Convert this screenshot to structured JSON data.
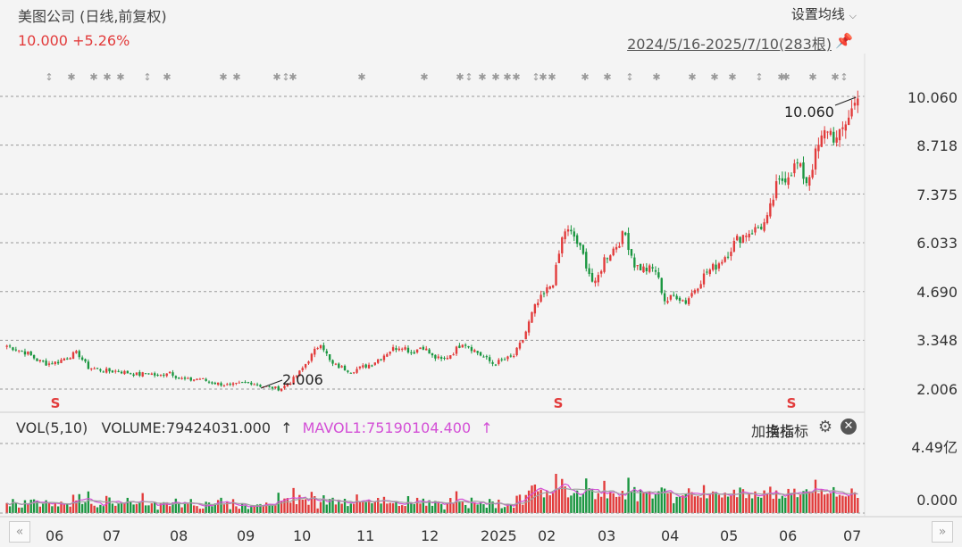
{
  "header": {
    "title": "美图公司 (日线,前复权)",
    "price_line": "10.000 +5.26%",
    "settings_label": "设置均线",
    "settings_icon": "chevron-down-icon",
    "date_range": "2024/5/16-2025/7/10(283根)",
    "pin_icon": "pin-icon"
  },
  "colors": {
    "up": "#e23b3b",
    "down": "#1a9640",
    "ma1": "#d34fd6",
    "ma2": "#a0a0a0",
    "grid": "#999999"
  },
  "chart_data": [
    {
      "type": "candlestick",
      "title": "美图公司 (日线,前复权)",
      "y_ticks": [
        "10.060",
        "8.718",
        "7.375",
        "6.033",
        "4.690",
        "3.348",
        "2.006"
      ],
      "ylim": [
        2.006,
        10.06
      ],
      "annotations": [
        {
          "label": "10.060",
          "note": "high"
        },
        {
          "label": "2.006",
          "note": "low"
        }
      ],
      "x_ticks": [
        "06",
        "07",
        "08",
        "09",
        "10",
        "11",
        "12",
        "2025",
        "02",
        "03",
        "04",
        "05",
        "06",
        "07"
      ],
      "approx_close_series": [
        3.2,
        3.1,
        3.0,
        2.8,
        2.7,
        2.75,
        2.9,
        3.0,
        2.6,
        2.55,
        2.5,
        2.5,
        2.45,
        2.4,
        2.45,
        2.35,
        2.5,
        2.3,
        2.25,
        2.3,
        2.2,
        2.15,
        2.1,
        2.15,
        2.2,
        2.1,
        2.05,
        2.01,
        2.2,
        2.5,
        2.9,
        3.3,
        2.7,
        2.6,
        2.5,
        2.6,
        2.7,
        2.9,
        3.1,
        3.2,
        3.0,
        3.2,
        2.9,
        2.8,
        3.0,
        3.3,
        3.1,
        2.9,
        2.7,
        2.8,
        2.9,
        3.4,
        4.2,
        4.6,
        5.0,
        6.4,
        6.2,
        5.6,
        4.8,
        5.6,
        5.9,
        6.3,
        5.4,
        5.3,
        5.3,
        4.4,
        4.6,
        4.4,
        4.8,
        5.2,
        5.4,
        5.7,
        6.1,
        6.3,
        6.4,
        6.6,
        7.6,
        7.9,
        8.2,
        7.7,
        8.6,
        9.2,
        8.8,
        9.5,
        10.0
      ]
    },
    {
      "type": "bar",
      "title": "VOL(5,10)",
      "y_ticks": [
        "4.49亿",
        "0.000"
      ],
      "series": [
        {
          "name": "VOLUME",
          "last": "79424031.000"
        },
        {
          "name": "MAVOL1",
          "last": "75190104.400"
        }
      ]
    }
  ],
  "volume_bar": {
    "title": "VOL(5,10)",
    "volume_text": "VOLUME:79424031.000",
    "ma_text": "MAVOL1:75190104.400",
    "arrow": "↑"
  },
  "toolbar": {
    "add_indicator": "加指标",
    "change_indicator": "换指标",
    "gear_icon": "gear-icon",
    "close_icon": "close-icon"
  },
  "nav": {
    "prev_icon": "double-chevron-left-icon",
    "next_icon": "double-chevron-right-icon"
  }
}
